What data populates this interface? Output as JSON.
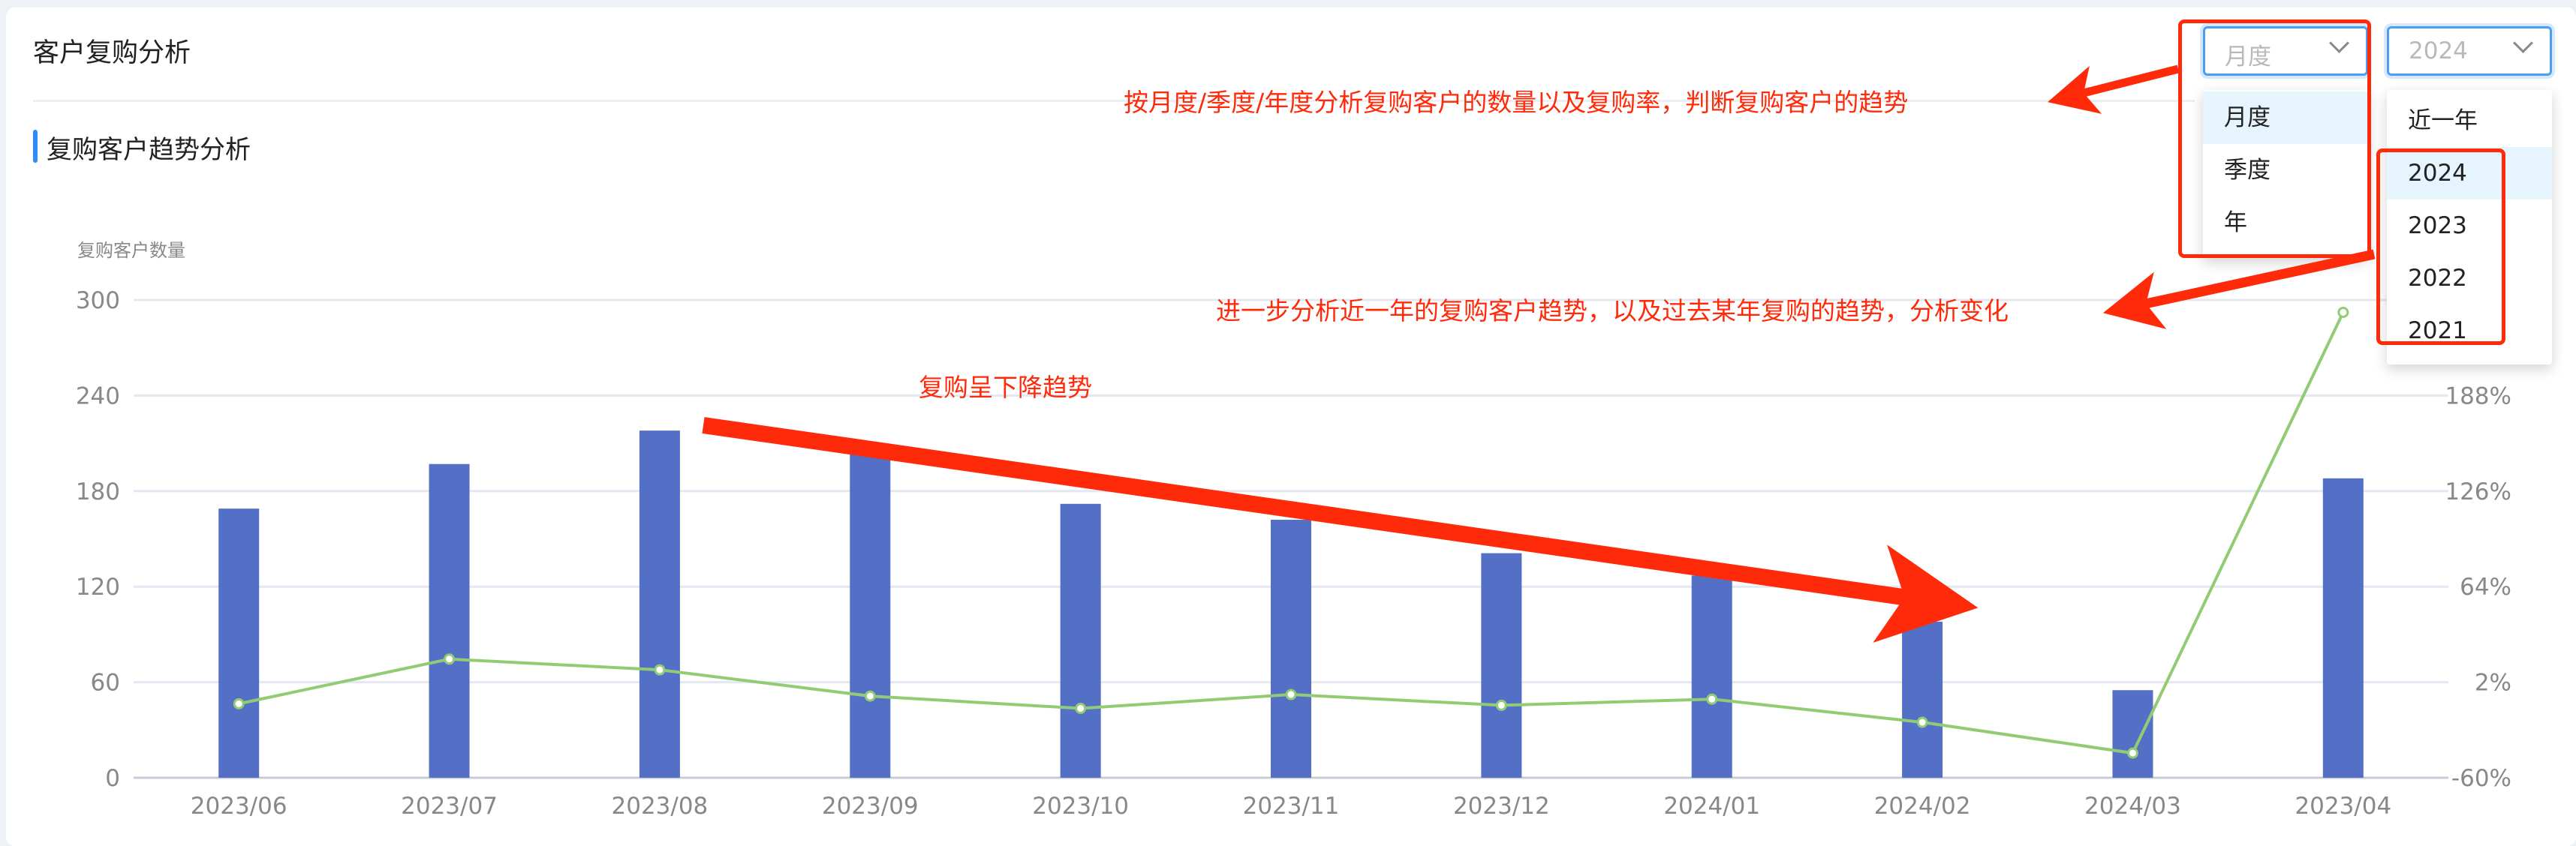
{
  "header": {
    "title": "客户复购分析"
  },
  "section": {
    "title": "复购客户趋势分析"
  },
  "filters": {
    "period": {
      "value": "月度",
      "options": [
        "月度",
        "季度",
        "年"
      ],
      "selected": "月度"
    },
    "year": {
      "value": "2024",
      "options": [
        "近一年",
        "2024",
        "2023",
        "2022",
        "2021"
      ],
      "selected": "2024"
    }
  },
  "annotations": {
    "note1": "按月度/季度/年度分析复购客户的数量以及复购率，判断复购客户的趋势",
    "note2": "进一步分析近一年的复购客户趋势，以及过去某年复购的趋势，分析变化",
    "note3": "复购呈下降趋势",
    "color": "#ff2a0a"
  },
  "chart_data": {
    "type": "bar+line",
    "ylabel": "复购客户数量",
    "categories": [
      "2023/06",
      "2023/07",
      "2023/08",
      "2023/09",
      "2023/10",
      "2023/11",
      "2023/12",
      "2024/01",
      "2024/02",
      "2024/03",
      "2023/04"
    ],
    "series": [
      {
        "type": "bar",
        "axis": "left",
        "color": "#5470c6",
        "values": [
          169,
          197,
          218,
          204,
          172,
          162,
          141,
          127,
          98,
          55,
          188
        ]
      },
      {
        "type": "line",
        "axis": "right",
        "color": "#91cc75",
        "values": [
          -12,
          17,
          10,
          -7,
          -15,
          -6,
          -13,
          -9,
          -24,
          -44,
          242
        ]
      }
    ],
    "left_axis": {
      "min": 0,
      "max": 300,
      "ticks": [
        "0",
        "60",
        "120",
        "180",
        "240",
        "300"
      ]
    },
    "right_axis": {
      "min": -60,
      "max": 250,
      "ticks": [
        "-60%",
        "2%",
        "64%",
        "126%",
        "188%"
      ]
    },
    "grid": true
  }
}
